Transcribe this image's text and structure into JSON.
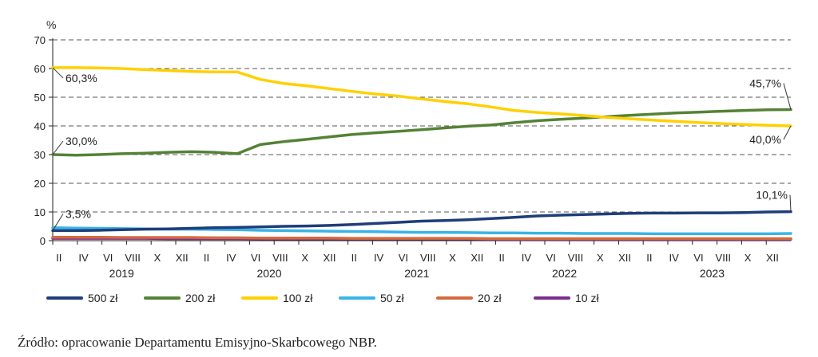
{
  "chart_data": {
    "type": "line",
    "unit": "%",
    "ylim": [
      0,
      70
    ],
    "yticks": [
      0,
      10,
      20,
      30,
      40,
      50,
      60,
      70
    ],
    "grid": true,
    "month_labels": [
      "II",
      "IV",
      "VI",
      "VIII",
      "X",
      "XII",
      "II",
      "IV",
      "VI",
      "VIII",
      "X",
      "XII",
      "II",
      "IV",
      "VI",
      "VIII",
      "X",
      "XII",
      "II",
      "IV",
      "VI",
      "VIII",
      "X",
      "XII",
      "II",
      "IV",
      "VI",
      "VIII",
      "X",
      "XII"
    ],
    "years": [
      "2019",
      "2020",
      "2021",
      "2022",
      "2023"
    ],
    "legend_position": "bottom",
    "series": [
      {
        "name": "500 zł",
        "color": "#1f3d7a",
        "values": [
          3.5,
          3.5,
          3.6,
          3.8,
          4.0,
          4.1,
          4.3,
          4.5,
          4.6,
          4.8,
          5.0,
          5.1,
          5.3,
          5.6,
          6.0,
          6.4,
          6.8,
          7.0,
          7.3,
          7.7,
          8.1,
          8.6,
          8.9,
          9.1,
          9.3,
          9.5,
          9.6,
          9.6,
          9.7,
          9.7,
          9.8,
          10.0,
          10.1
        ]
      },
      {
        "name": "200 zł",
        "color": "#548235",
        "values": [
          30.0,
          29.8,
          30.0,
          30.3,
          30.5,
          30.8,
          31.0,
          30.8,
          30.3,
          33.5,
          34.5,
          35.3,
          36.2,
          37.0,
          37.6,
          38.1,
          38.7,
          39.3,
          39.9,
          40.3,
          41.1,
          41.8,
          42.3,
          42.7,
          43.2,
          43.7,
          44.1,
          44.5,
          44.8,
          45.1,
          45.4,
          45.6,
          45.7
        ]
      },
      {
        "name": "100 zł",
        "color": "#ffd000",
        "values": [
          60.3,
          60.3,
          60.2,
          60.0,
          59.6,
          59.3,
          59.0,
          58.8,
          58.8,
          56.2,
          54.8,
          54.0,
          53.0,
          52.0,
          51.1,
          50.4,
          49.4,
          48.5,
          47.7,
          46.6,
          45.4,
          44.7,
          44.2,
          43.6,
          43.0,
          42.5,
          42.0,
          41.6,
          41.2,
          40.8,
          40.5,
          40.2,
          40.0
        ]
      },
      {
        "name": "50 zł",
        "color": "#39b4e6",
        "values": [
          4.5,
          4.4,
          4.3,
          4.2,
          4.1,
          4.0,
          4.0,
          3.9,
          3.8,
          3.6,
          3.5,
          3.4,
          3.3,
          3.2,
          3.1,
          3.0,
          2.9,
          2.9,
          2.8,
          2.7,
          2.7,
          2.6,
          2.6,
          2.5,
          2.5,
          2.5,
          2.4,
          2.4,
          2.4,
          2.4,
          2.4,
          2.4,
          2.5
        ]
      },
      {
        "name": "20 zł",
        "color": "#d46a3c",
        "values": [
          1.2,
          1.2,
          1.2,
          1.1,
          1.1,
          1.1,
          1.1,
          1.0,
          1.0,
          0.9,
          0.9,
          0.9,
          0.9,
          0.8,
          0.8,
          0.8,
          0.8,
          0.8,
          0.8,
          0.7,
          0.7,
          0.7,
          0.7,
          0.7,
          0.7,
          0.7,
          0.7,
          0.7,
          0.7,
          0.7,
          0.7,
          0.7,
          0.7
        ]
      },
      {
        "name": "10 zł",
        "color": "#7b2d8e",
        "values": [
          0.8,
          0.8,
          0.8,
          0.8,
          0.8,
          0.7,
          0.7,
          0.7,
          0.7,
          0.6,
          0.6,
          0.6,
          0.6,
          0.6,
          0.6,
          0.6,
          0.6,
          0.6,
          0.6,
          0.5,
          0.5,
          0.5,
          0.5,
          0.5,
          0.5,
          0.5,
          0.5,
          0.5,
          0.5,
          0.5,
          0.5,
          0.5,
          0.5
        ]
      }
    ],
    "annotations": [
      {
        "text": "60,3%",
        "series": "100 zł",
        "at": "start"
      },
      {
        "text": "30,0%",
        "series": "200 zł",
        "at": "start"
      },
      {
        "text": "3,5%",
        "series": "500 zł",
        "at": "start"
      },
      {
        "text": "45,7%",
        "series": "200 zł",
        "at": "end"
      },
      {
        "text": "40,0%",
        "series": "100 zł",
        "at": "end"
      },
      {
        "text": "10,1%",
        "series": "500 zł",
        "at": "end"
      }
    ]
  },
  "source": "Źródło: opracowanie Departamentu Emisyjno-Skarbcowego NBP."
}
